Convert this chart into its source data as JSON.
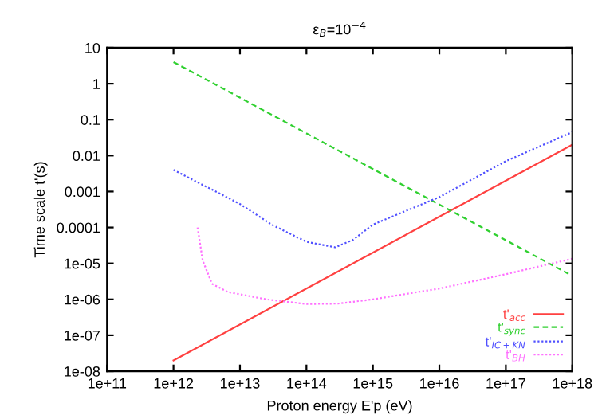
{
  "chart_data": {
    "type": "line",
    "title": "ε$_{B}$=10$^{−4}$",
    "xlabel": "Proton energy E'p (eV)",
    "ylabel": "Time scale t'(s)",
    "log": "xy",
    "grid": false,
    "legend": "bottom right",
    "xlim": [
      100000000000.0,
      1e+18
    ],
    "ylim": [
      1e-08,
      10
    ],
    "xticks": [
      {
        "value": 100000000000.0,
        "label": "1e+11"
      },
      {
        "value": 1000000000000.0,
        "label": "1e+12"
      },
      {
        "value": 10000000000000.0,
        "label": "1e+13"
      },
      {
        "value": 100000000000000.0,
        "label": "1e+14"
      },
      {
        "value": 1000000000000000.0,
        "label": "1e+15"
      },
      {
        "value": 1e+16,
        "label": "1e+16"
      },
      {
        "value": 1e+17,
        "label": "1e+17"
      },
      {
        "value": 1e+18,
        "label": "1e+18"
      }
    ],
    "yticks": [
      {
        "value": 1e-08,
        "label": "1e-08"
      },
      {
        "value": 1e-07,
        "label": "1e-07"
      },
      {
        "value": 1e-06,
        "label": "1e-06"
      },
      {
        "value": 1e-05,
        "label": "1e-05"
      },
      0.0001,
      0.001,
      0.01,
      0.1,
      1,
      10
    ],
    "series": [
      {
        "name": "t'$_{acc}$",
        "color": "#ff4040",
        "line_style": "solid",
        "x": [
          1000000000000.0,
          1e+18
        ],
        "values": [
          2e-08,
          0.02
        ]
      },
      {
        "name": "t'$_{sync}$",
        "color": "#30d030",
        "line_style": "dashed",
        "x": [
          1000000000000.0,
          1e+18
        ],
        "values": [
          4,
          4.5e-06
        ]
      },
      {
        "name": "t'$_{IC+KN}$",
        "color": "#5050ff",
        "line_style": "dotted",
        "x": [
          1000000000000.0,
          10000000000000.0,
          30000000000000.0,
          100000000000000.0,
          270000000000000.0,
          500000000000000.0,
          1000000000000000.0,
          3000000000000000.0,
          1e+16,
          1e+17,
          1e+18
        ],
        "values": [
          0.004,
          0.00045,
          0.00012,
          4e-05,
          2.8e-05,
          4.5e-05,
          0.00012,
          0.00028,
          0.0007,
          0.007,
          0.045
        ]
      },
      {
        "name": "t'$_{BH}$",
        "color": "#ff70ff",
        "line_style": "dotted",
        "x": [
          2300000000000.0,
          2750000000000.0,
          3800000000000.0,
          6600000000000.0,
          25000000000000.0,
          100000000000000.0,
          300000000000000.0,
          1000000000000000.0,
          1e+16,
          1e+17,
          1e+18
        ],
        "values": [
          0.0001,
          1.2e-05,
          2.7e-06,
          1.6e-06,
          1e-06,
          7.4e-07,
          7.6e-07,
          1e-06,
          2e-06,
          5e-06,
          1.35e-05
        ]
      }
    ]
  }
}
